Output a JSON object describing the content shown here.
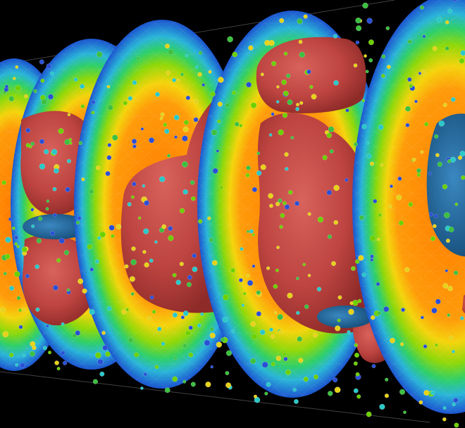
{
  "scene": {
    "background_color": "#000000",
    "colors": {
      "ring_outer": "#1f6fd6",
      "ring_mid": "#33c7a0",
      "ring_green": "#6cd000",
      "ring_yellow": "#f2c90e",
      "ring_inner": "#ff8a0a",
      "blob_red": "#b83e3a",
      "blob_red_light": "#d45b55",
      "core_blue": "#1e6fa5",
      "particle_blue": "#2a4fd6",
      "particle_green": "#3cc040",
      "particle_yellow": "#e6d21a",
      "particle_cyan": "#2ac8c8"
    }
  }
}
